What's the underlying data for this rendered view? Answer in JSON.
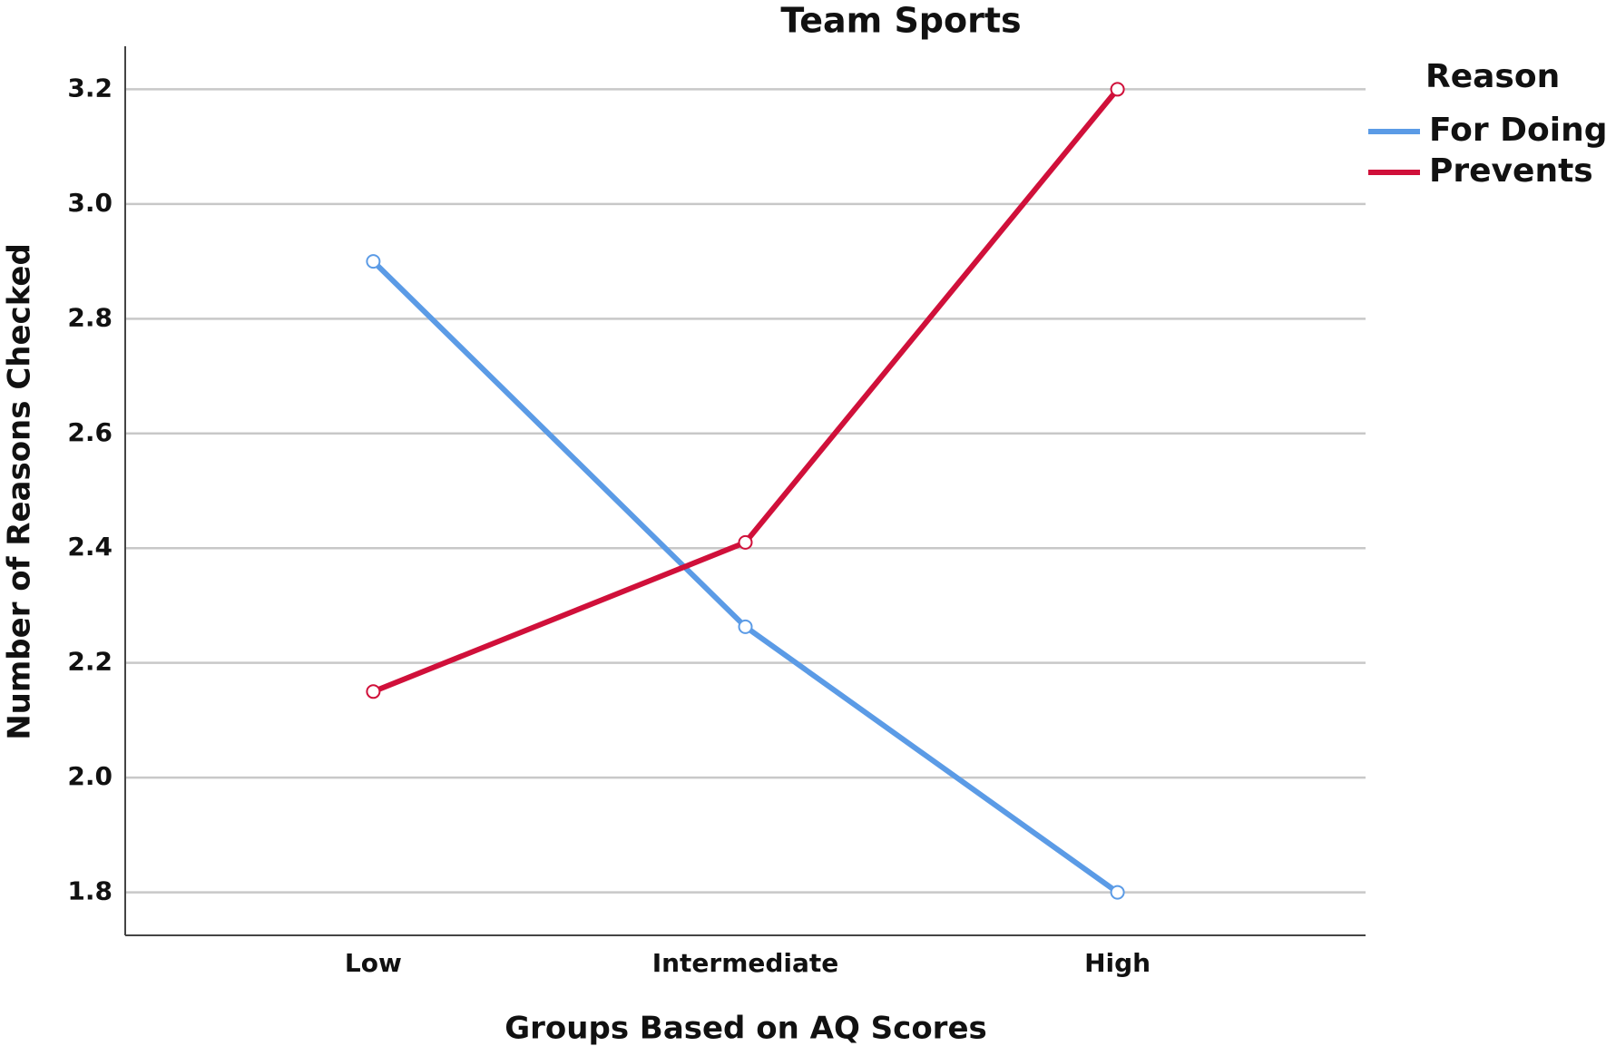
{
  "chart_data": {
    "type": "line",
    "title": "Team Sports",
    "x_label": "Groups Based on AQ Scores",
    "y_label": "Number of Reasons Checked",
    "categories": [
      "Low",
      "Intermediate",
      "High"
    ],
    "series": [
      {
        "name": "For Doing",
        "color": "#5b9be6",
        "values": [
          2.9,
          2.263,
          1.8
        ]
      },
      {
        "name": "Prevents",
        "color": "#d0103a",
        "values": [
          2.15,
          2.41,
          3.2
        ]
      }
    ],
    "ylim": [
      1.725,
      3.275
    ],
    "yticks": [
      {
        "value": 1.8,
        "label": "1.8"
      },
      {
        "value": 2.0,
        "label": "2.0"
      },
      {
        "value": 2.2,
        "label": "2.2"
      },
      {
        "value": 2.4,
        "label": "2.4"
      },
      {
        "value": 2.6,
        "label": "2.6"
      },
      {
        "value": 2.8,
        "label": "2.8"
      },
      {
        "value": 3.0,
        "label": "3.0"
      },
      {
        "value": 3.2,
        "label": "3.2"
      }
    ],
    "grid": true,
    "legend_title": "Reason",
    "legend_position": "right"
  }
}
